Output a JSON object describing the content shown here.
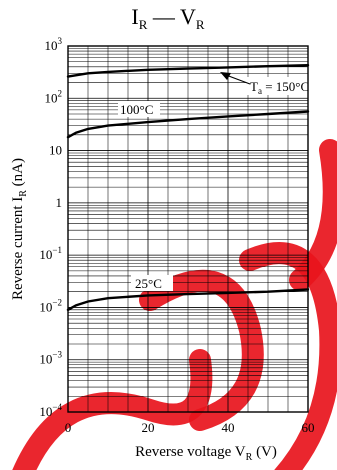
{
  "chart_data": {
    "type": "line",
    "title_main": "I",
    "title_main_sub": "R",
    "title_dash": " — ",
    "title_second": "V",
    "title_second_sub": "R",
    "xlabel": "Reverse voltage  V",
    "xlabel_sub": "R",
    "xlabel_unit": "  (V)",
    "ylabel": "Reverse current  I",
    "ylabel_sub": "R",
    "ylabel_unit": "  (nA)",
    "xlim": [
      0,
      60
    ],
    "ylim": [
      0.0001,
      1000
    ],
    "yscale": "log",
    "grid": true,
    "x_ticks": [
      "0",
      "20",
      "40",
      "60"
    ],
    "y_ticks": [
      {
        "base": "10",
        "exp": "−4",
        "value": 0.0001
      },
      {
        "base": "10",
        "exp": "−3",
        "value": 0.001
      },
      {
        "base": "10",
        "exp": "−2",
        "value": 0.01
      },
      {
        "base": "10",
        "exp": "−1",
        "value": 0.1
      },
      {
        "base": "1",
        "exp": "",
        "value": 1
      },
      {
        "base": "10",
        "exp": "",
        "value": 10
      },
      {
        "base": "10",
        "exp": "2",
        "value": 100
      },
      {
        "base": "10",
        "exp": "3",
        "value": 1000
      }
    ],
    "series": [
      {
        "name": "T  = 150°C",
        "label_main": "T",
        "label_sub": "a",
        "label_rest": " = 150°C",
        "x": [
          0,
          5,
          10,
          20,
          30,
          40,
          50,
          60
        ],
        "y": [
          260,
          300,
          320,
          350,
          370,
          390,
          410,
          430
        ]
      },
      {
        "name": "100°C",
        "label_main": "100°C",
        "x": [
          0,
          2,
          5,
          10,
          20,
          30,
          40,
          50,
          60
        ],
        "y": [
          18,
          22,
          26,
          30,
          35,
          40,
          45,
          50,
          56
        ]
      },
      {
        "name": "25°C",
        "label_main": "25°C",
        "x": [
          0,
          2,
          5,
          10,
          20,
          30,
          40,
          50,
          60
        ],
        "y": [
          0.009,
          0.011,
          0.013,
          0.015,
          0.017,
          0.018,
          0.019,
          0.02,
          0.022
        ]
      }
    ]
  }
}
